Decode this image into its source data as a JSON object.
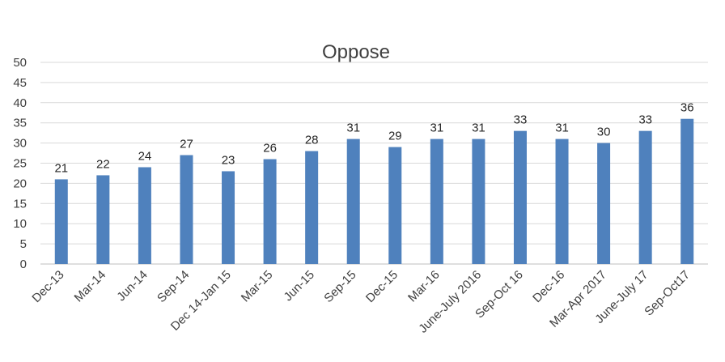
{
  "chart_data": {
    "type": "bar",
    "title": "Oppose",
    "xlabel": "",
    "ylabel": "",
    "ylim": [
      0,
      50
    ],
    "yticks": [
      0,
      5,
      10,
      15,
      20,
      25,
      30,
      35,
      40,
      45,
      50
    ],
    "grid": true,
    "legend": "none",
    "bar_color": "#4f81bd",
    "categories": [
      "Dec-13",
      "Mar-14",
      "Jun-14",
      "Sep-14",
      "Dec 14-Jan 15",
      "Mar-15",
      "Jun-15",
      "Sep-15",
      "Dec-15",
      "Mar-16",
      "June-July 2016",
      "Sep-Oct 16",
      "Dec-16",
      "Mar-Apr 2017",
      "June-July 17",
      "Sep-Oct17"
    ],
    "values": [
      21,
      22,
      24,
      27,
      23,
      26,
      28,
      31,
      29,
      31,
      31,
      33,
      31,
      30,
      33,
      36
    ]
  }
}
